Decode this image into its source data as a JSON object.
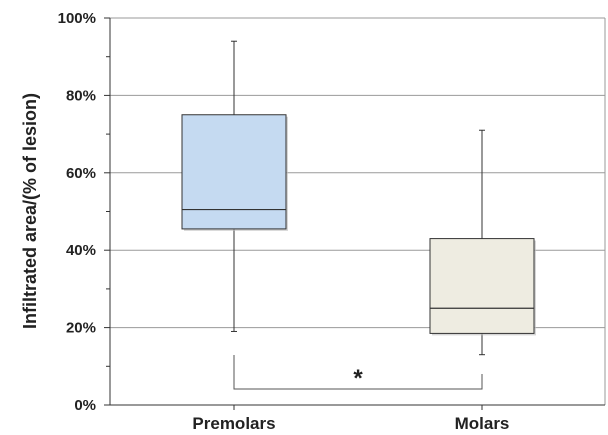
{
  "chart_data": {
    "type": "boxplot",
    "ylabel": "Infiltrated area/(% of lesion)",
    "ylim": [
      0,
      100
    ],
    "yticks": [
      "0%",
      "20%",
      "40%",
      "60%",
      "80%",
      "100%"
    ],
    "grid": true,
    "categories": [
      "Premolars",
      "Molars"
    ],
    "boxes": [
      {
        "category": "Premolars",
        "min": 19,
        "q1": 45.5,
        "median": 50.5,
        "q3": 75,
        "max": 94,
        "color": "#c5daf1"
      },
      {
        "category": "Molars",
        "min": 13,
        "q1": 18.5,
        "median": 25,
        "q3": 43,
        "max": 71,
        "color": "#eeece1"
      }
    ],
    "significance": {
      "from": "Premolars",
      "to": "Molars",
      "label": "*"
    }
  }
}
